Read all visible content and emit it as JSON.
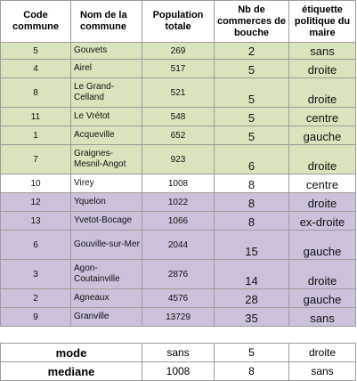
{
  "headers": {
    "code": "Code commune",
    "nom": "Nom de la commune",
    "population": "Population totale",
    "commerces": "Nb de commerces de bouche",
    "etiquette": "étiquette politique du maire"
  },
  "rows": [
    {
      "code": "5",
      "nom": "Gouvets",
      "population": "269",
      "commerces": "2",
      "etiquette": "sans"
    },
    {
      "code": "4",
      "nom": "Airel",
      "population": "517",
      "commerces": "5",
      "etiquette": "droite"
    },
    {
      "code": "8",
      "nom": "Le Grand-Celland",
      "population": "521",
      "commerces": "5",
      "etiquette": "droite"
    },
    {
      "code": "11",
      "nom": "Le Vrétot",
      "population": "548",
      "commerces": "5",
      "etiquette": "centre"
    },
    {
      "code": "1",
      "nom": "Acqueville",
      "population": "652",
      "commerces": "5",
      "etiquette": "gauche"
    },
    {
      "code": "7",
      "nom": "Graignes-Mesnil-Angot",
      "population": "923",
      "commerces": "6",
      "etiquette": "droite"
    },
    {
      "code": "10",
      "nom": "Virey",
      "population": "1008",
      "commerces": "8",
      "etiquette": "centre"
    },
    {
      "code": "12",
      "nom": "Yquelon",
      "population": "1022",
      "commerces": "8",
      "etiquette": "droite"
    },
    {
      "code": "13",
      "nom": "Yvetot-Bocage",
      "population": "1066",
      "commerces": "8",
      "etiquette": "ex-droite"
    },
    {
      "code": "6",
      "nom": "Gouville-sur-Mer",
      "population": "2044",
      "commerces": "15",
      "etiquette": "gauche"
    },
    {
      "code": "3",
      "nom": "Agon-Coutainville",
      "population": "2876",
      "commerces": "14",
      "etiquette": "droite"
    },
    {
      "code": "2",
      "nom": "Agneaux",
      "population": "4576",
      "commerces": "28",
      "etiquette": "gauche"
    },
    {
      "code": "9",
      "nom": "Granville",
      "population": "13729",
      "commerces": "35",
      "etiquette": "sans"
    }
  ],
  "stats": [
    {
      "label": "mode",
      "population": "sans",
      "commerces": "5",
      "etiquette": "droite"
    },
    {
      "label": "mediane",
      "population": "1008",
      "commerces": "8",
      "etiquette": "sans"
    }
  ],
  "colors": {
    "green": "#d8e4bc",
    "white": "#ffffff",
    "purple": "#ccc0da"
  }
}
